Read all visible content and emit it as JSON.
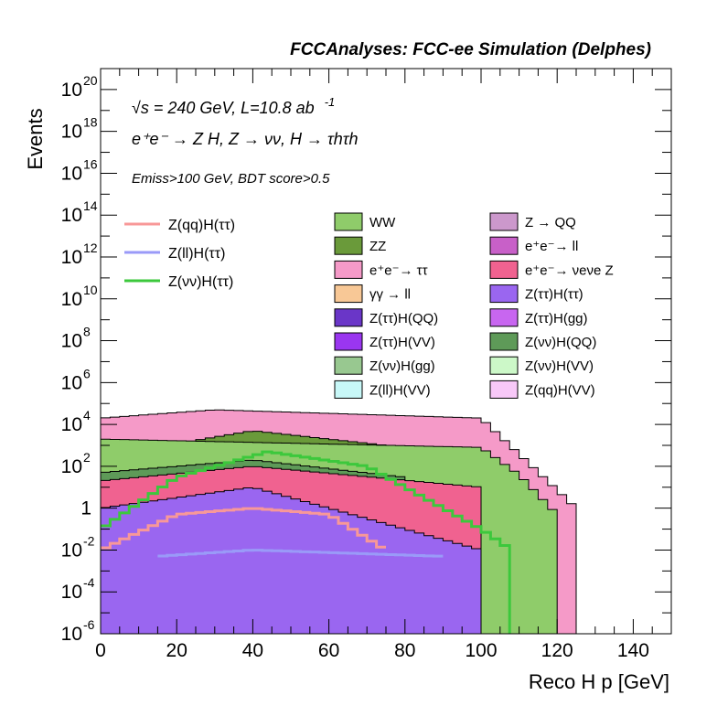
{
  "header": {
    "text": "FCCAnalyses: FCC-ee Simulation (Delphes)"
  },
  "annotations": {
    "line1": "√s = 240 GeV, L=10.8 ab",
    "line1_sup": "-1",
    "line2": "e⁺e⁻ → Z H, Z → νν, H → τhτh",
    "line3": "Emiss>100 GeV, BDT score>0.5"
  },
  "chart_data": {
    "type": "bar",
    "title": "",
    "xlabel": "Reco H p [GeV]",
    "ylabel": "Events",
    "xlim": [
      0,
      150
    ],
    "ylim": [
      1e-06,
      1e+21
    ],
    "yscale": "log",
    "x_ticks": [
      "0",
      "20",
      "40",
      "60",
      "80",
      "100",
      "120",
      "140"
    ],
    "y_ticks": [
      {
        "base": "10",
        "exp": "-6"
      },
      {
        "base": "10",
        "exp": "-4"
      },
      {
        "base": "10",
        "exp": "-2"
      },
      {
        "base": "1",
        "exp": ""
      },
      {
        "base": "10",
        "exp": "2"
      },
      {
        "base": "10",
        "exp": "4"
      },
      {
        "base": "10",
        "exp": "6"
      },
      {
        "base": "10",
        "exp": "8"
      },
      {
        "base": "10",
        "exp": "10"
      },
      {
        "base": "10",
        "exp": "12"
      },
      {
        "base": "10",
        "exp": "14"
      },
      {
        "base": "10",
        "exp": "16"
      },
      {
        "base": "10",
        "exp": "18"
      },
      {
        "base": "10",
        "exp": "20"
      }
    ],
    "legend_placement": "top (two columns of filled backgrounds, one column of signal lines)",
    "stacked_backgrounds": [
      {
        "name": "WW",
        "color": "#8fcc6a",
        "x": [
          0,
          100,
          110,
          120
        ],
        "y": [
          2000,
          800,
          40,
          0.5
        ]
      },
      {
        "name": "ZZ",
        "color": "#6a9a3a",
        "x": [
          0,
          40,
          90,
          110
        ],
        "y": [
          300,
          5000,
          500,
          3
        ]
      },
      {
        "name": "e⁺e⁻→ ττ",
        "color": "#f59ac8",
        "x": [
          0,
          30,
          100,
          125
        ],
        "y": [
          20000,
          50000,
          20000,
          1
        ]
      },
      {
        "name": "e⁺e⁻→ νeνe Z",
        "color": "#f06290",
        "x": [
          0,
          40,
          100
        ],
        "y": [
          20,
          100,
          10
        ]
      },
      {
        "name": "Z(νν)H(QQ)",
        "color": "#5e9a58",
        "x": [
          0,
          40,
          80
        ],
        "y": [
          50,
          200,
          30
        ]
      },
      {
        "name": "Z(ττ)H(ττ)",
        "color": "#9a66f0",
        "x": [
          0,
          40,
          100
        ],
        "y": [
          1,
          10,
          0.01
        ]
      }
    ],
    "legend_fills": [
      {
        "name": "WW",
        "color": "#8fcc6a"
      },
      {
        "name": "ZZ",
        "color": "#6a9a3a"
      },
      {
        "name": "e⁺e⁻→ ττ",
        "color": "#f59ac8"
      },
      {
        "name": "γγ → ll",
        "color": "#f8c896"
      },
      {
        "name": "Z(ττ)H(QQ)",
        "color": "#6a36c8"
      },
      {
        "name": "Z(ττ)H(VV)",
        "color": "#9a36f0"
      },
      {
        "name": "Z(νν)H(gg)",
        "color": "#98c890"
      },
      {
        "name": "Z(ll)H(VV)",
        "color": "#c8f8f8"
      },
      {
        "name": "Z → QQ",
        "color": "#cc98cc"
      },
      {
        "name": "e⁺e⁻→ ll",
        "color": "#c860c8"
      },
      {
        "name": "e⁺e⁻→ νeνe Z",
        "color": "#f06290"
      },
      {
        "name": "Z(ττ)H(ττ)",
        "color": "#9a66f0"
      },
      {
        "name": "Z(ττ)H(gg)",
        "color": "#c866f0"
      },
      {
        "name": "Z(νν)H(QQ)",
        "color": "#5e9a58"
      },
      {
        "name": "Z(νν)H(VV)",
        "color": "#ccf8c8"
      },
      {
        "name": "Z(qq)H(VV)",
        "color": "#f8c8f8"
      }
    ],
    "signal_lines": [
      {
        "name": "Z(qq)H(ττ)",
        "color": "#f89898",
        "x": [
          0,
          20,
          40,
          60,
          75
        ],
        "y": [
          0.01,
          0.5,
          1,
          0.5,
          0.01
        ]
      },
      {
        "name": "Z(ll)H(ττ)",
        "color": "#9a9af8",
        "x": [
          15,
          40,
          90
        ],
        "y": [
          0.005,
          0.01,
          0.005
        ]
      },
      {
        "name": "Z(νν)H(ττ)",
        "color": "#3cc83c",
        "x": [
          0,
          20,
          44,
          70,
          100,
          108
        ],
        "y": [
          0.1,
          30,
          500,
          100,
          0.1,
          0.01
        ]
      }
    ]
  }
}
